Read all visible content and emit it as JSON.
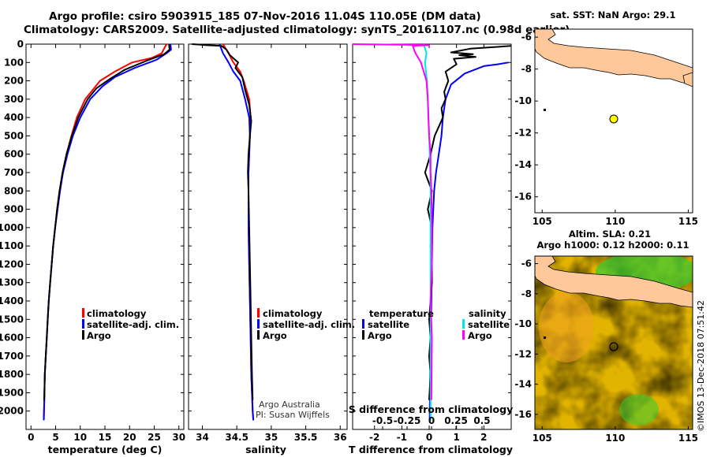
{
  "title_line1": "Argo profile: csiro 5903915_185 07-Nov-2016 11.04S 110.05E (DM data)",
  "title_line2": "Climatology: CARS2009. Satellite-adjusted climatology: synTS_20161107.nc (0.98d earlier)",
  "credit": "©IMOS 13-Dec-2018 07:51:42",
  "colors": {
    "climatology": "#ff0000",
    "satellite": "#0000ff",
    "argo": "#000000",
    "sat_salinity": "#00e5e5",
    "argo_salinity": "#ff00ff",
    "land": "#fec89a"
  },
  "chart_data": [
    {
      "id": "temperature",
      "type": "line",
      "title": "",
      "xlabel": "temperature (deg C)",
      "ylabel": "",
      "xlim": [
        -1,
        31
      ],
      "ylim": [
        2100,
        0
      ],
      "xticks": [
        0,
        5,
        10,
        15,
        20,
        25,
        30
      ],
      "yticks": [
        0,
        100,
        200,
        300,
        400,
        500,
        600,
        700,
        800,
        900,
        1000,
        1100,
        1200,
        1300,
        1400,
        1500,
        1600,
        1700,
        1800,
        1900,
        2000
      ],
      "legend": [
        "climatology",
        "satellite-adj. clim.",
        "Argo"
      ],
      "series": [
        {
          "name": "climatology",
          "color": "#ff0000",
          "x": [
            27.5,
            26.5,
            24.5,
            20.5,
            17,
            14,
            12.5,
            11,
            9.3,
            8.2,
            7.2,
            6.4,
            5.8,
            5.3,
            4.9,
            4.5,
            4.2,
            3.9,
            3.6,
            3.4,
            3.2,
            3.0,
            2.8,
            2.7,
            2.6
          ],
          "y": [
            0,
            50,
            75,
            100,
            150,
            200,
            250,
            300,
            400,
            500,
            600,
            700,
            800,
            900,
            1000,
            1100,
            1200,
            1300,
            1400,
            1500,
            1600,
            1700,
            1800,
            1950,
            2050
          ]
        },
        {
          "name": "satellite-adj. clim.",
          "color": "#0000ff",
          "x": [
            28.3,
            28.4,
            27.5,
            25.5,
            21,
            17,
            14.5,
            12,
            10,
            8.5,
            7.4,
            6.5,
            5.9,
            5.4,
            4.9,
            4.5,
            4.2,
            3.9,
            3.6,
            3.4,
            3.2,
            3.0,
            2.8,
            2.7,
            2.6
          ],
          "y": [
            0,
            30,
            50,
            85,
            130,
            180,
            230,
            300,
            400,
            500,
            600,
            700,
            800,
            900,
            1000,
            1100,
            1200,
            1300,
            1400,
            1500,
            1600,
            1700,
            1800,
            1950,
            2050
          ]
        },
        {
          "name": "Argo",
          "color": "#000000",
          "x": [
            28.0,
            28.1,
            27.0,
            23.5,
            19,
            16,
            13.3,
            11.5,
            9.6,
            8.3,
            7.2,
            6.4,
            5.8,
            5.3,
            4.9,
            4.5,
            4.2,
            3.9,
            3.6,
            3.4,
            3.2,
            3.0,
            2.8,
            2.7
          ],
          "y": [
            0,
            30,
            55,
            90,
            140,
            190,
            240,
            300,
            400,
            500,
            600,
            700,
            800,
            900,
            1000,
            1100,
            1200,
            1300,
            1400,
            1500,
            1600,
            1700,
            1800,
            1940
          ]
        }
      ]
    },
    {
      "id": "salinity",
      "type": "line",
      "xlabel": "salinity",
      "xlim": [
        33.8,
        36.1
      ],
      "ylim": [
        2100,
        0
      ],
      "xticks": [
        34,
        34.5,
        35,
        35.5,
        36
      ],
      "legend": [
        "climatology",
        "satellite-adj. clim.",
        "Argo"
      ],
      "annotation": [
        "Argo Australia",
        "PI: Susan Wijffels"
      ],
      "series": [
        {
          "name": "climatology",
          "color": "#ff0000",
          "x": [
            34.3,
            34.38,
            34.45,
            34.55,
            34.6,
            34.68,
            34.7,
            34.69,
            34.68,
            34.67,
            34.67,
            34.67,
            34.68,
            34.69,
            34.7,
            34.71,
            34.72,
            34.73,
            34.74
          ],
          "y": [
            0,
            50,
            100,
            150,
            200,
            300,
            400,
            500,
            600,
            700,
            800,
            1000,
            1200,
            1400,
            1600,
            1800,
            1900,
            2000,
            2050
          ]
        },
        {
          "name": "satellite-adj. clim.",
          "color": "#0000ff",
          "x": [
            34.25,
            34.3,
            34.38,
            34.45,
            34.55,
            34.62,
            34.68,
            34.69,
            34.68,
            34.67,
            34.67,
            34.67,
            34.68,
            34.69,
            34.7,
            34.71,
            34.72,
            34.73,
            34.74
          ],
          "y": [
            0,
            50,
            100,
            150,
            200,
            300,
            400,
            500,
            600,
            700,
            800,
            1000,
            1200,
            1400,
            1600,
            1800,
            1900,
            2000,
            2050
          ]
        },
        {
          "name": "Argo",
          "color": "#000000",
          "x": [
            33.85,
            34.05,
            34.28,
            34.35,
            34.4,
            34.52,
            34.48,
            34.58,
            34.62,
            34.68,
            34.71,
            34.69,
            34.67,
            34.66,
            34.67,
            34.68,
            34.69,
            34.7,
            34.71,
            34.72,
            34.73
          ],
          "y": [
            0,
            5,
            10,
            30,
            60,
            100,
            130,
            180,
            250,
            330,
            420,
            500,
            600,
            700,
            800,
            1000,
            1200,
            1400,
            1600,
            1800,
            1940
          ]
        }
      ]
    },
    {
      "id": "differences",
      "type": "line",
      "xlabel": "T difference from climatology",
      "xlabel2": "S difference from climatology",
      "xlim": [
        -2.8,
        3.0
      ],
      "ylim": [
        2100,
        0
      ],
      "xticks": [
        -2,
        -1,
        0,
        1,
        2
      ],
      "sticks": [
        "-0.5",
        "-0.25",
        "0",
        "0.25",
        "0.5"
      ],
      "legend_left_title": "temperature",
      "legend_right_title": "salinity",
      "legend_left": [
        "satellite",
        "Argo"
      ],
      "legend_right": [
        "satellite",
        "Argo"
      ],
      "series": [
        {
          "name": "T satellite",
          "color": "#0000ff",
          "x": [
            2.9,
            2.5,
            2.0,
            1.3,
            0.8,
            0.6,
            0.5,
            0.45,
            0.35,
            0.25,
            0.18,
            0.12,
            0.1,
            0.08,
            0.06,
            0.04,
            0.03,
            0.02,
            0.02
          ],
          "y": [
            100,
            110,
            120,
            160,
            220,
            300,
            400,
            500,
            600,
            700,
            800,
            1000,
            1200,
            1400,
            1600,
            1800,
            1900,
            2000,
            2050
          ]
        },
        {
          "name": "T Argo",
          "color": "#000000",
          "x": [
            3.0,
            1.5,
            0.8,
            1.6,
            1.1,
            1.7,
            0.9,
            1.0,
            0.6,
            0.7,
            0.55,
            0.6,
            0.45,
            0.5,
            0.35,
            0.2,
            0.05,
            -0.15,
            0.1,
            -0.05,
            0.1,
            0.05,
            0.1,
            0.1,
            0.05,
            0.0,
            0.05,
            0.0,
            0.05,
            0.0
          ],
          "y": [
            10,
            25,
            45,
            55,
            60,
            70,
            80,
            110,
            150,
            200,
            260,
            300,
            350,
            400,
            450,
            500,
            600,
            700,
            800,
            900,
            1000,
            1100,
            1200,
            1300,
            1400,
            1500,
            1600,
            1700,
            1800,
            1940
          ]
        },
        {
          "name": "S satellite",
          "color": "#00e5e5",
          "x": [
            -0.2,
            -0.1,
            -0.15,
            -0.12,
            -0.08,
            -0.05,
            -0.02,
            0.0,
            0.02,
            0.04,
            0.05,
            0.05,
            0.05,
            0.05,
            0.05,
            0.05,
            0.05,
            0.05,
            0.05
          ],
          "y": [
            0,
            50,
            100,
            150,
            200,
            300,
            400,
            500,
            600,
            700,
            800,
            1000,
            1200,
            1400,
            1600,
            1800,
            1900,
            2000,
            2050
          ]
        },
        {
          "name": "S Argo",
          "color": "#ff00ff",
          "x": [
            -2.8,
            0.0,
            -0.6,
            -0.5,
            -0.3,
            -0.2,
            -0.1,
            -0.05,
            -0.03,
            0.0,
            0.05,
            0.05,
            0.08,
            0.1,
            0.1,
            0.05,
            0.1,
            0.08
          ],
          "y": [
            0,
            5,
            10,
            50,
            100,
            150,
            200,
            300,
            400,
            500,
            600,
            700,
            800,
            1000,
            1200,
            1400,
            1600,
            1940
          ]
        }
      ]
    },
    {
      "id": "map_sst",
      "type": "scatter",
      "title": "sat. SST: NaN Argo: 29.1",
      "xlim": [
        104.5,
        115.3
      ],
      "ylim": [
        -17,
        -5.5
      ],
      "xticks": [
        105,
        110,
        115
      ],
      "yticks": [
        -6,
        -8,
        -10,
        -12,
        -14,
        -16
      ],
      "points": [
        {
          "lon": 110.05,
          "lat": -11.04
        }
      ]
    },
    {
      "id": "map_sla",
      "type": "heatmap",
      "title_line1": "Altim. SLA: 0.21",
      "title_line2": "Argo h1000: 0.12 h2000: 0.11",
      "xlim": [
        104.5,
        115.3
      ],
      "ylim": [
        -17,
        -5.5
      ],
      "xticks": [
        105,
        110,
        115
      ],
      "yticks": [
        -6,
        -8,
        -10,
        -12,
        -14,
        -16
      ],
      "points": [
        {
          "lon": 110.05,
          "lat": -11.04
        }
      ]
    }
  ]
}
